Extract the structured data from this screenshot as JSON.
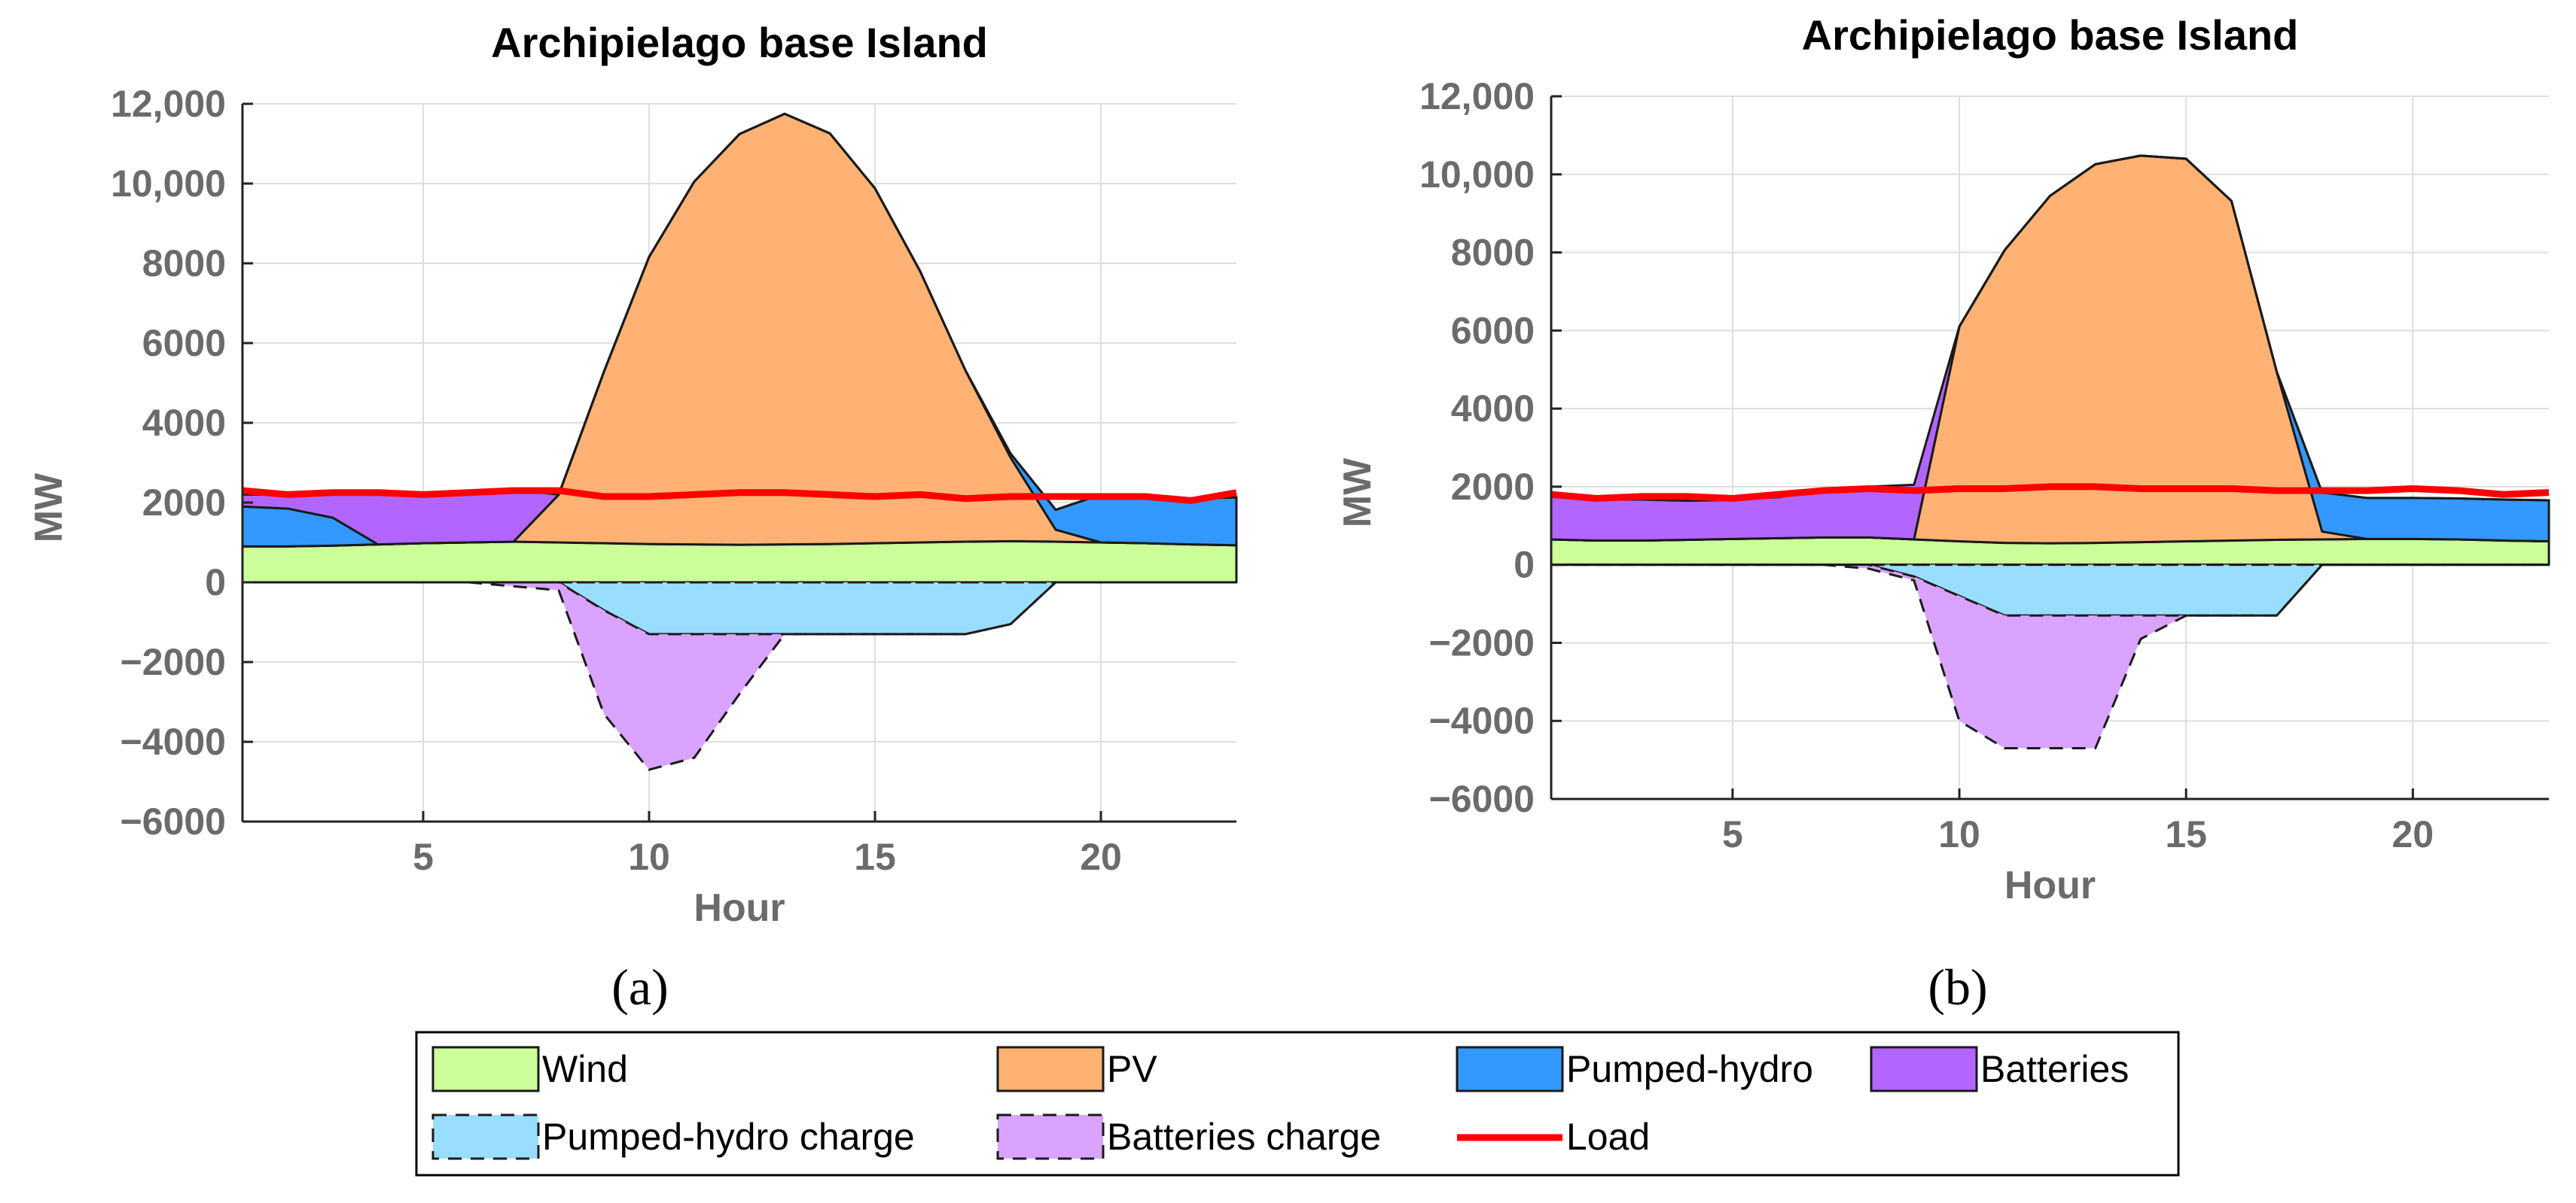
{
  "panel_labels": [
    "(a)",
    "(b)"
  ],
  "legend": [
    {
      "label": "Wind",
      "color": "#ccff99",
      "style": "solid"
    },
    {
      "label": "PV",
      "color": "#ffb273",
      "style": "solid"
    },
    {
      "label": "Pumped-hydro",
      "color": "#3399ff",
      "style": "solid"
    },
    {
      "label": "Batteries",
      "color": "#b266ff",
      "style": "solid"
    },
    {
      "label": "Pumped-hydro charge",
      "color": "#99ddff",
      "style": "dashed"
    },
    {
      "label": "Batteries charge",
      "color": "#d9a3ff",
      "style": "dashed"
    },
    {
      "label": "Load",
      "color": "#ff0000",
      "style": "line"
    }
  ],
  "chart_data": [
    {
      "type": "area",
      "title": "Archipielago base Island",
      "xlabel": "Hour",
      "ylabel": "MW",
      "xlim": [
        1,
        23
      ],
      "ylim": [
        -6000,
        12000
      ],
      "xticks": [
        5,
        10,
        15,
        20
      ],
      "yticks": [
        -6000,
        -4000,
        -2000,
        0,
        2000,
        4000,
        6000,
        8000,
        10000,
        12000
      ],
      "ytick_labels": [
        "−6000",
        "−4000",
        "−2000",
        "0",
        "2000",
        "4000",
        "6000",
        "8000",
        "10,000",
        "12,000"
      ],
      "grid": true,
      "x": [
        1,
        2,
        3,
        4,
        5,
        6,
        7,
        8,
        9,
        10,
        11,
        12,
        13,
        14,
        15,
        16,
        17,
        18,
        19,
        20,
        21,
        22,
        23
      ],
      "series": [
        {
          "name": "Wind",
          "values": [
            900,
            900,
            920,
            950,
            980,
            1000,
            1020,
            1000,
            980,
            960,
            950,
            940,
            950,
            960,
            980,
            1000,
            1020,
            1030,
            1020,
            1000,
            980,
            950,
            930
          ]
        },
        {
          "name": "PV",
          "values": [
            0,
            0,
            0,
            0,
            0,
            0,
            0,
            1200,
            4300,
            7200,
            9100,
            10300,
            10800,
            10300,
            8900,
            6800,
            4300,
            2100,
            300,
            0,
            0,
            0,
            0
          ]
        },
        {
          "name": "Pumped-hydro",
          "values": [
            1000,
            950,
            700,
            0,
            0,
            0,
            0,
            0,
            0,
            0,
            0,
            0,
            0,
            0,
            0,
            0,
            0,
            100,
            500,
            1200,
            1150,
            1150,
            1200
          ]
        },
        {
          "name": "Batteries",
          "values": [
            300,
            350,
            600,
            1250,
            1200,
            1200,
            1300,
            0,
            0,
            0,
            0,
            0,
            0,
            0,
            0,
            0,
            0,
            0,
            0,
            0,
            0,
            0,
            0
          ]
        },
        {
          "name": "Pumped-hydro charge",
          "values": [
            0,
            0,
            0,
            0,
            0,
            0,
            0,
            0,
            -700,
            -1300,
            -1300,
            -1300,
            -1300,
            -1300,
            -1300,
            -1300,
            -1300,
            -1050,
            0,
            0,
            0,
            0,
            0
          ]
        },
        {
          "name": "Batteries charge",
          "values": [
            0,
            0,
            0,
            0,
            0,
            0,
            -100,
            -200,
            -2600,
            -3400,
            -3100,
            -1500,
            0,
            0,
            0,
            0,
            0,
            0,
            0,
            0,
            0,
            0,
            0
          ]
        },
        {
          "name": "Load",
          "values": [
            2300,
            2200,
            2250,
            2250,
            2200,
            2250,
            2300,
            2300,
            2150,
            2150,
            2200,
            2250,
            2250,
            2200,
            2150,
            2200,
            2100,
            2150,
            2150,
            2150,
            2150,
            2050,
            2250
          ]
        }
      ]
    },
    {
      "type": "area",
      "title": "Archipielago base Island",
      "xlabel": "Hour",
      "ylabel": "MW",
      "xlim": [
        1,
        23
      ],
      "ylim": [
        -6000,
        12000
      ],
      "xticks": [
        5,
        10,
        15,
        20
      ],
      "yticks": [
        -6000,
        -4000,
        -2000,
        0,
        2000,
        4000,
        6000,
        8000,
        10000,
        12000
      ],
      "ytick_labels": [
        "−6000",
        "−4000",
        "−2000",
        "0",
        "2000",
        "4000",
        "6000",
        "8000",
        "10,000",
        "12,000"
      ],
      "grid": true,
      "x": [
        1,
        2,
        3,
        4,
        5,
        6,
        7,
        8,
        9,
        10,
        11,
        12,
        13,
        14,
        15,
        16,
        17,
        18,
        19,
        20,
        21,
        22,
        23
      ],
      "series": [
        {
          "name": "Wind",
          "values": [
            650,
            620,
            620,
            640,
            660,
            680,
            700,
            700,
            650,
            600,
            560,
            550,
            560,
            580,
            600,
            620,
            640,
            650,
            660,
            660,
            650,
            620,
            600
          ]
        },
        {
          "name": "PV",
          "values": [
            0,
            0,
            0,
            0,
            0,
            0,
            0,
            0,
            0,
            5500,
            7500,
            8900,
            9700,
            9900,
            9800,
            8700,
            4300,
            200,
            0,
            0,
            0,
            0,
            0
          ]
        },
        {
          "name": "Pumped-hydro",
          "values": [
            0,
            0,
            0,
            0,
            0,
            0,
            0,
            0,
            0,
            0,
            0,
            0,
            0,
            0,
            0,
            0,
            0,
            1000,
            1050,
            1050,
            1050,
            1050,
            1050
          ]
        },
        {
          "name": "Batteries",
          "values": [
            1100,
            1050,
            1050,
            1000,
            1000,
            1050,
            1200,
            1300,
            1400,
            0,
            0,
            0,
            0,
            0,
            0,
            0,
            0,
            0,
            0,
            0,
            0,
            0,
            0
          ]
        },
        {
          "name": "Pumped-hydro charge",
          "values": [
            0,
            0,
            0,
            0,
            0,
            0,
            0,
            0,
            -300,
            -800,
            -1300,
            -1300,
            -1300,
            -1300,
            -1300,
            -1300,
            -1300,
            0,
            0,
            0,
            0,
            0,
            0
          ]
        },
        {
          "name": "Batteries charge",
          "values": [
            0,
            0,
            0,
            0,
            0,
            0,
            0,
            -100,
            -100,
            -3200,
            -3400,
            -3400,
            -3400,
            -600,
            0,
            0,
            0,
            0,
            0,
            0,
            0,
            0,
            0
          ]
        },
        {
          "name": "Load",
          "values": [
            1800,
            1700,
            1750,
            1750,
            1700,
            1800,
            1900,
            1950,
            1900,
            1950,
            1950,
            2000,
            2000,
            1950,
            1950,
            1950,
            1900,
            1900,
            1900,
            1950,
            1900,
            1800,
            1850
          ]
        }
      ]
    }
  ]
}
